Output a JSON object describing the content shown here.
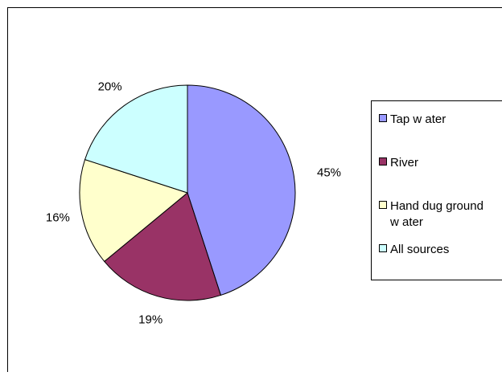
{
  "chart_data": {
    "type": "pie",
    "title": "",
    "slices": [
      {
        "label": "Tap water",
        "value": 45,
        "display": "45%",
        "color": "#9999ff"
      },
      {
        "label": "River",
        "value": 19,
        "display": "19%",
        "color": "#993366"
      },
      {
        "label": "Hand dug ground water",
        "value": 16,
        "display": "16%",
        "color": "#ffffcc"
      },
      {
        "label": "All sources",
        "value": 20,
        "display": "20%",
        "color": "#ccffff"
      }
    ],
    "legend": {
      "placement": "right",
      "entries": [
        {
          "lines": [
            "Tap w ater"
          ]
        },
        {
          "lines": [
            "River"
          ]
        },
        {
          "lines": [
            "Hand dug ground",
            "w ater"
          ]
        },
        {
          "lines": [
            "All sources"
          ]
        }
      ]
    }
  }
}
